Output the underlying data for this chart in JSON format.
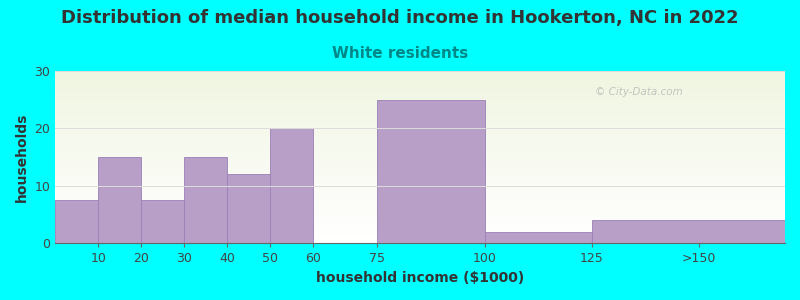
{
  "title": "Distribution of median household income in Hookerton, NC in 2022",
  "subtitle": "White residents",
  "xlabel": "household income ($1000)",
  "ylabel": "households",
  "bg_outer": "#00FFFF",
  "bar_color": "#b89fc8",
  "bar_edgecolor": "#9a80b8",
  "watermark": "© City-Data.com",
  "tick_positions": [
    10,
    20,
    30,
    40,
    50,
    60,
    75,
    100,
    125,
    150
  ],
  "tick_labels": [
    "10",
    "20",
    "30",
    "40",
    "50",
    "60",
    "75",
    "100",
    "125",
    ">150"
  ],
  "bar_left_edges": [
    0,
    10,
    20,
    30,
    40,
    50,
    60,
    75,
    100,
    125
  ],
  "bar_right_edges": [
    10,
    20,
    30,
    40,
    50,
    60,
    75,
    100,
    125,
    170
  ],
  "values": [
    7.5,
    15,
    7.5,
    15,
    12,
    20,
    0,
    25,
    2,
    4
  ],
  "xlim": [
    0,
    170
  ],
  "yticks": [
    0,
    10,
    20,
    30
  ],
  "ylim": [
    0,
    30
  ],
  "title_fontsize": 13,
  "subtitle_fontsize": 11,
  "subtitle_color": "#008888",
  "axis_label_fontsize": 10,
  "tick_fontsize": 9,
  "title_color": "#333333",
  "grid_color": "#dddddd"
}
